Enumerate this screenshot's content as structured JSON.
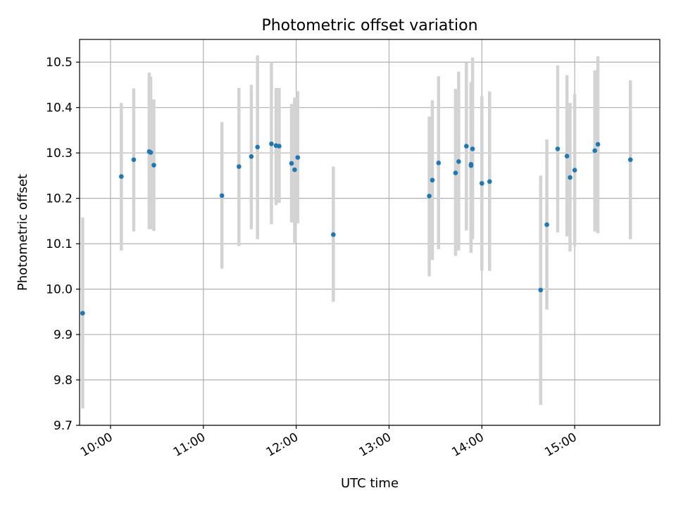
{
  "chart_data": {
    "type": "scatter",
    "title": "Photometric offset variation",
    "xlabel": "UTC time",
    "ylabel": "Photometric offset",
    "x_unit": "UTC time (HH:MM)",
    "xlim": [
      "09:40",
      "15:55"
    ],
    "ylim": [
      9.7,
      10.55
    ],
    "x_ticks": [
      "10:00",
      "11:00",
      "12:00",
      "13:00",
      "14:00",
      "15:00"
    ],
    "y_ticks": [
      9.7,
      9.8,
      9.9,
      10.0,
      10.1,
      10.2,
      10.3,
      10.4,
      10.5
    ],
    "grid": true,
    "colors": {
      "point": "#1f77b4",
      "errorbar": "#d3d3d3",
      "grid": "#b0b0b0"
    },
    "points": [
      {
        "x": "09:42",
        "y": 9.947,
        "ylow": 9.737,
        "yhigh": 10.158
      },
      {
        "x": "10:07",
        "y": 10.248,
        "ylow": 10.085,
        "yhigh": 10.41
      },
      {
        "x": "10:15",
        "y": 10.285,
        "ylow": 10.127,
        "yhigh": 10.442
      },
      {
        "x": "10:25",
        "y": 10.303,
        "ylow": 10.132,
        "yhigh": 10.477
      },
      {
        "x": "10:26",
        "y": 10.301,
        "ylow": 10.132,
        "yhigh": 10.468
      },
      {
        "x": "10:28",
        "y": 10.273,
        "ylow": 10.128,
        "yhigh": 10.418
      },
      {
        "x": "11:12",
        "y": 10.206,
        "ylow": 10.045,
        "yhigh": 10.368
      },
      {
        "x": "11:23",
        "y": 10.27,
        "ylow": 10.095,
        "yhigh": 10.443
      },
      {
        "x": "11:31",
        "y": 10.292,
        "ylow": 10.132,
        "yhigh": 10.45
      },
      {
        "x": "11:35",
        "y": 10.313,
        "ylow": 10.11,
        "yhigh": 10.515
      },
      {
        "x": "11:44",
        "y": 10.32,
        "ylow": 10.143,
        "yhigh": 10.5
      },
      {
        "x": "11:47",
        "y": 10.316,
        "ylow": 10.185,
        "yhigh": 10.443
      },
      {
        "x": "11:49",
        "y": 10.315,
        "ylow": 10.19,
        "yhigh": 10.443
      },
      {
        "x": "11:57",
        "y": 10.277,
        "ylow": 10.147,
        "yhigh": 10.408
      },
      {
        "x": "11:59",
        "y": 10.263,
        "ylow": 10.102,
        "yhigh": 10.422
      },
      {
        "x": "12:01",
        "y": 10.29,
        "ylow": 10.145,
        "yhigh": 10.436
      },
      {
        "x": "12:24",
        "y": 10.12,
        "ylow": 9.972,
        "yhigh": 10.27
      },
      {
        "x": "13:26",
        "y": 10.205,
        "ylow": 10.028,
        "yhigh": 10.38
      },
      {
        "x": "13:28",
        "y": 10.24,
        "ylow": 10.064,
        "yhigh": 10.416
      },
      {
        "x": "13:32",
        "y": 10.278,
        "ylow": 10.088,
        "yhigh": 10.469
      },
      {
        "x": "13:43",
        "y": 10.256,
        "ylow": 10.073,
        "yhigh": 10.441
      },
      {
        "x": "13:45",
        "y": 10.281,
        "ylow": 10.085,
        "yhigh": 10.479
      },
      {
        "x": "13:50",
        "y": 10.315,
        "ylow": 10.129,
        "yhigh": 10.499
      },
      {
        "x": "13:53",
        "y": 10.275,
        "ylow": 10.08,
        "yhigh": 10.456
      },
      {
        "x": "13:54",
        "y": 10.309,
        "ylow": 10.11,
        "yhigh": 10.51
      },
      {
        "x": "13:53",
        "y": 10.272,
        "ylow": 10.095,
        "yhigh": 10.449
      },
      {
        "x": "14:00",
        "y": 10.233,
        "ylow": 10.04,
        "yhigh": 10.425
      },
      {
        "x": "14:05",
        "y": 10.237,
        "ylow": 10.04,
        "yhigh": 10.435
      },
      {
        "x": "14:38",
        "y": 9.998,
        "ylow": 9.745,
        "yhigh": 10.25
      },
      {
        "x": "14:42",
        "y": 10.142,
        "ylow": 9.955,
        "yhigh": 10.33
      },
      {
        "x": "14:49",
        "y": 10.309,
        "ylow": 10.125,
        "yhigh": 10.493
      },
      {
        "x": "14:55",
        "y": 10.293,
        "ylow": 10.116,
        "yhigh": 10.471
      },
      {
        "x": "14:57",
        "y": 10.246,
        "ylow": 10.083,
        "yhigh": 10.41
      },
      {
        "x": "15:00",
        "y": 10.262,
        "ylow": 10.095,
        "yhigh": 10.43
      },
      {
        "x": "15:13",
        "y": 10.305,
        "ylow": 10.127,
        "yhigh": 10.482
      },
      {
        "x": "15:15",
        "y": 10.319,
        "ylow": 10.123,
        "yhigh": 10.513
      },
      {
        "x": "15:36",
        "y": 10.285,
        "ylow": 10.11,
        "yhigh": 10.46
      }
    ]
  }
}
